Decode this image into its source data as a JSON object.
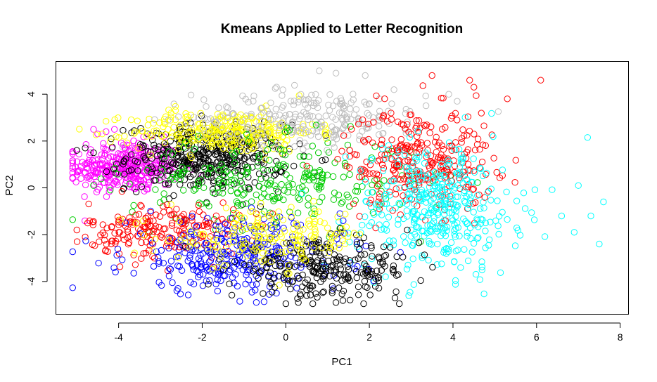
{
  "chart_data": {
    "type": "scatter",
    "title": "Kmeans Applied to Letter Recognition",
    "xlabel": "PC1",
    "ylabel": "PC2",
    "xlim": [
      -5.5,
      8.2
    ],
    "ylim": [
      -5.4,
      5.4
    ],
    "x_ticks": [
      -4,
      -2,
      0,
      2,
      4,
      6,
      8
    ],
    "y_ticks": [
      -4,
      -2,
      0,
      2,
      4
    ],
    "x_tick_labels": [
      "-4",
      "-2",
      "0",
      "2",
      "4",
      "6",
      "8"
    ],
    "y_tick_labels": [
      "-4",
      "-2",
      "0",
      "2",
      "4"
    ],
    "grid": false,
    "marker": "open-circle",
    "clusters": [
      {
        "color": "#ff00ff",
        "center": [
          -3.8,
          0.9
        ],
        "spread": [
          0.65,
          0.55
        ],
        "count": 340,
        "extra_points": [
          [
            -5.1,
            0.4
          ],
          [
            -4.9,
            0.4
          ],
          [
            -4.7,
            0.4
          ],
          [
            -4.6,
            2.5
          ],
          [
            -4.5,
            2.3
          ],
          [
            -4.3,
            2.4
          ],
          [
            -4.1,
            2.5
          ]
        ]
      },
      {
        "color": "#000000",
        "center": [
          -1.9,
          1.3
        ],
        "spread": [
          0.95,
          0.7
        ],
        "count": 420,
        "extra_points": [
          [
            -5.0,
            1.6
          ],
          [
            -4.8,
            1.7
          ],
          [
            -4.6,
            1.5
          ]
        ]
      },
      {
        "color": "#ffff00",
        "center": [
          -1.5,
          2.4
        ],
        "spread": [
          1.1,
          0.45
        ],
        "count": 280,
        "extra_points": []
      },
      {
        "color": "#bebebe",
        "center": [
          0.6,
          3.0
        ],
        "spread": [
          1.4,
          0.6
        ],
        "count": 240,
        "extra_points": [
          [
            0.8,
            5.0
          ],
          [
            1.2,
            4.9
          ],
          [
            1.9,
            4.8
          ],
          [
            4.1,
            3.7
          ],
          [
            3.9,
            4.0
          ]
        ]
      },
      {
        "color": "#00cd00",
        "center": [
          -0.3,
          0.3
        ],
        "spread": [
          1.7,
          0.9
        ],
        "count": 260,
        "extra_points": [
          [
            -4.6,
            0.1
          ],
          [
            -4.2,
            -0.1
          ]
        ]
      },
      {
        "color": "#ff0000",
        "center": [
          3.2,
          1.2
        ],
        "spread": [
          0.9,
          1.1
        ],
        "count": 300,
        "extra_points": [
          [
            6.1,
            4.6
          ],
          [
            3.5,
            4.8
          ],
          [
            4.4,
            4.6
          ],
          [
            4.5,
            4.3
          ],
          [
            5.3,
            3.8
          ]
        ]
      },
      {
        "color": "#ff0000",
        "center": [
          -2.9,
          -1.8
        ],
        "spread": [
          0.9,
          0.6
        ],
        "count": 200,
        "extra_points": [
          [
            -5.0,
            -1.8
          ],
          [
            -4.8,
            -2.1
          ]
        ]
      },
      {
        "color": "#00ffff",
        "center": [
          3.6,
          -0.9
        ],
        "spread": [
          1.0,
          1.4
        ],
        "count": 380,
        "extra_points": [
          [
            7.0,
            0.1
          ],
          [
            7.6,
            -0.6
          ],
          [
            7.3,
            -1.2
          ],
          [
            7.5,
            -2.4
          ],
          [
            6.9,
            -1.9
          ],
          [
            6.6,
            -1.2
          ]
        ]
      },
      {
        "color": "#0000ff",
        "center": [
          -1.2,
          -2.9
        ],
        "spread": [
          1.3,
          0.8
        ],
        "count": 320,
        "extra_points": []
      },
      {
        "color": "#000000",
        "center": [
          0.9,
          -3.5
        ],
        "spread": [
          1.1,
          0.6
        ],
        "count": 260,
        "extra_points": [
          [
            0.3,
            -4.9
          ],
          [
            1.2,
            -4.9
          ]
        ]
      },
      {
        "color": "#ffff00",
        "center": [
          -0.4,
          -2.1
        ],
        "spread": [
          1.2,
          0.6
        ],
        "count": 180,
        "extra_points": []
      }
    ]
  }
}
